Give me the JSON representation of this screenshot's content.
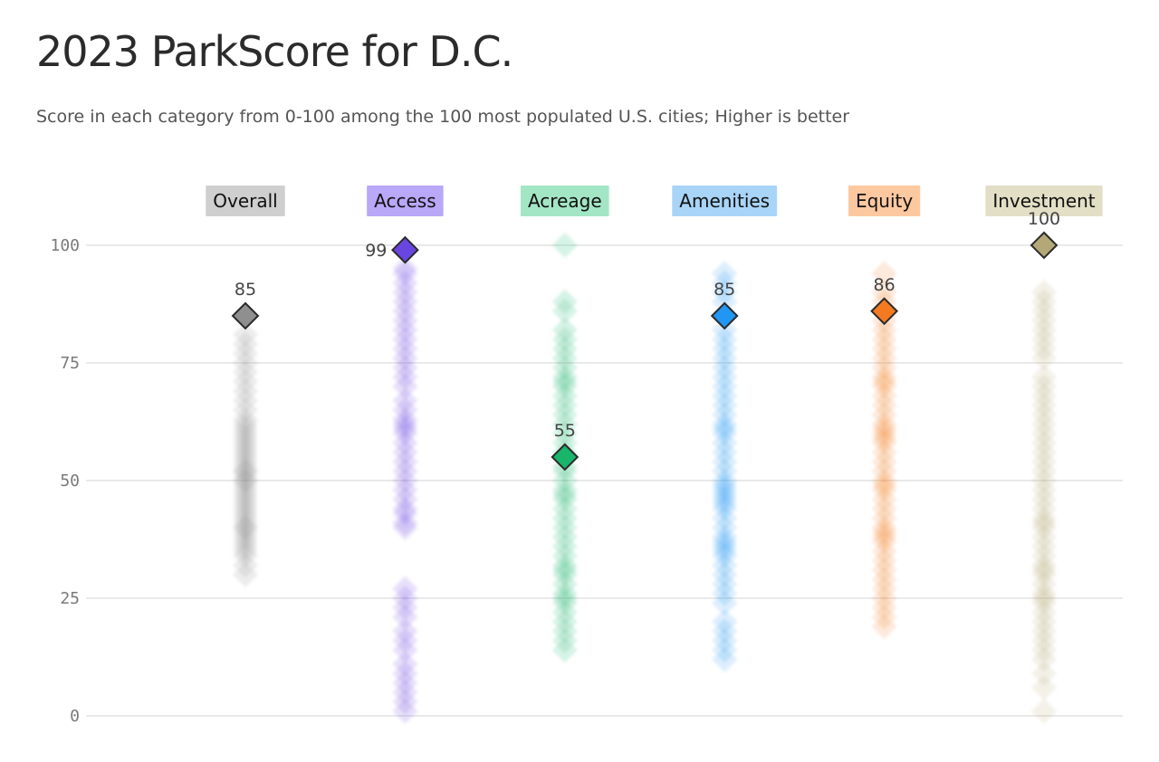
{
  "title": "2023 ParkScore for D.C.",
  "subtitle": "Score in each category from 0-100 among the 100 most populated U.S. cities; Higher is better",
  "chart_data": {
    "type": "scatter",
    "ylim": [
      0,
      100
    ],
    "yticks": [
      0,
      25,
      50,
      75,
      100
    ],
    "grid": true,
    "categories": [
      {
        "name": "Overall",
        "label_bg": "#cfcfcf",
        "color": "#8f8f8f",
        "highlight": 85,
        "highlight_label": "85",
        "distribution": [
          30,
          32,
          34,
          35,
          36,
          37,
          38,
          39,
          40,
          40,
          41,
          42,
          43,
          44,
          45,
          46,
          47,
          48,
          49,
          50,
          50,
          51,
          52,
          52,
          53,
          54,
          55,
          56,
          57,
          58,
          59,
          60,
          61,
          62,
          63,
          65,
          67,
          69,
          71,
          73,
          75,
          77,
          79,
          81
        ]
      },
      {
        "name": "Access",
        "label_bg": "#b9a7f8",
        "color": "#6a46e0",
        "highlight": 99,
        "highlight_label": "99",
        "distribution": [
          1,
          3,
          5,
          7,
          9,
          11,
          14,
          16,
          18,
          21,
          23,
          25,
          27,
          40,
          41,
          43,
          44,
          46,
          48,
          50,
          52,
          54,
          56,
          58,
          60,
          61,
          62,
          63,
          65,
          67,
          70,
          72,
          74,
          76,
          78,
          80,
          82,
          84,
          86,
          88,
          90,
          92,
          94,
          95
        ]
      },
      {
        "name": "Acreage",
        "label_bg": "#a3e6c5",
        "color": "#18b56b",
        "highlight": 55,
        "highlight_label": "55",
        "distribution": [
          14,
          16,
          18,
          20,
          22,
          24,
          25,
          26,
          28,
          30,
          31,
          32,
          34,
          36,
          38,
          40,
          42,
          44,
          46,
          47,
          48,
          50,
          52,
          53,
          56,
          58,
          60,
          62,
          64,
          66,
          68,
          70,
          71,
          72,
          74,
          76,
          78,
          80,
          82,
          86,
          88,
          100
        ]
      },
      {
        "name": "Amenities",
        "label_bg": "#a8d4f8",
        "color": "#2196f3",
        "highlight": 85,
        "highlight_label": "85",
        "distribution": [
          12,
          14,
          16,
          18,
          20,
          24,
          26,
          28,
          30,
          32,
          34,
          35,
          36,
          37,
          38,
          40,
          42,
          44,
          45,
          46,
          47,
          48,
          49,
          50,
          52,
          54,
          56,
          58,
          60,
          61,
          62,
          64,
          66,
          68,
          70,
          72,
          74,
          76,
          78,
          80,
          82,
          88,
          90,
          92,
          94
        ]
      },
      {
        "name": "Equity",
        "label_bg": "#fcc8a0",
        "color": "#f47a22",
        "highlight": 86,
        "highlight_label": "86",
        "distribution": [
          19,
          21,
          23,
          25,
          27,
          29,
          31,
          33,
          35,
          37,
          38,
          39,
          40,
          42,
          44,
          46,
          48,
          49,
          50,
          52,
          54,
          56,
          58,
          59,
          60,
          61,
          62,
          64,
          66,
          68,
          70,
          71,
          72,
          74,
          76,
          78,
          80,
          82,
          84,
          88,
          90,
          94
        ]
      },
      {
        "name": "Investment",
        "label_bg": "#e3dfc6",
        "color": "#b5a878",
        "highlight": 100,
        "highlight_label": "100",
        "distribution": [
          1,
          6,
          9,
          12,
          14,
          16,
          18,
          20,
          22,
          24,
          25,
          26,
          28,
          30,
          31,
          32,
          34,
          36,
          38,
          40,
          41,
          42,
          44,
          46,
          48,
          50,
          52,
          54,
          56,
          58,
          60,
          62,
          64,
          66,
          68,
          70,
          72,
          76,
          78,
          80,
          82,
          84,
          86,
          88,
          90
        ]
      }
    ]
  }
}
